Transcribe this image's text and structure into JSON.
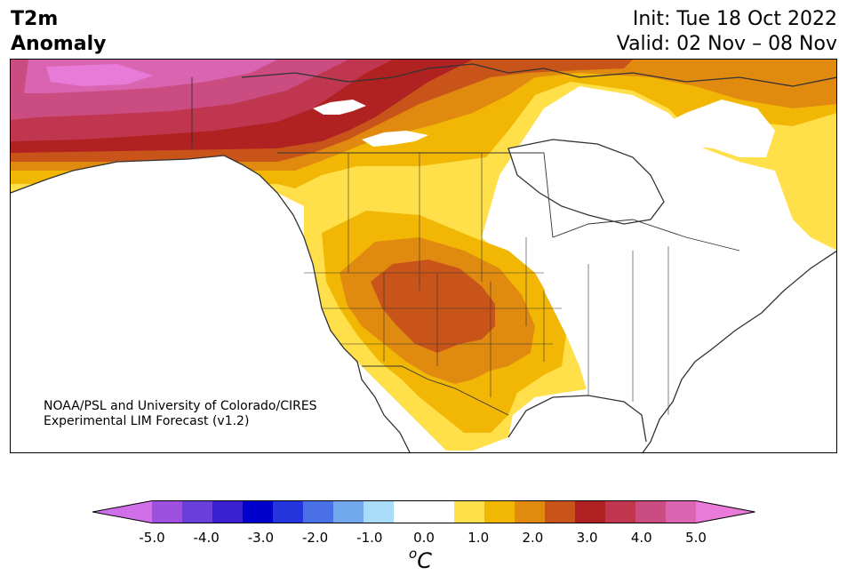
{
  "title": {
    "line1": "T2m",
    "line2": "Anomaly"
  },
  "info": {
    "init": "Init: Tue 18 Oct 2022",
    "valid": "Valid: 02 Nov – 08 Nov"
  },
  "credit": {
    "line1": "NOAA/PSL and University of Colorado/CIRES",
    "line2": "Experimental LIM Forecast (v1.2)"
  },
  "colorbar": {
    "colors": [
      "#d070e8",
      "#9d50e0",
      "#6a3ddd",
      "#3a20d0",
      "#0000cc",
      "#2435dd",
      "#4a70e6",
      "#72a8ee",
      "#a9dcf8",
      "#ffffff",
      "#ffffff",
      "#ffe04a",
      "#f2b705",
      "#e08a10",
      "#c9541a",
      "#b02222",
      "#c0364e",
      "#cb4c80",
      "#d965b0",
      "#e87ad8"
    ],
    "tick_labels": [
      "-5.0",
      "-4.0",
      "-3.0",
      "-2.0",
      "-1.0",
      "0.0",
      "1.0",
      "2.0",
      "3.0",
      "4.0",
      "5.0"
    ],
    "unit_base": "C",
    "unit_sup": "o"
  },
  "map_colors": {
    "c05": "#ffe04a",
    "c10": "#f2b705",
    "c15": "#e08a10",
    "c20": "#c9541a",
    "c25": "#b02222",
    "c30": "#c0364e",
    "c35": "#cb4c80",
    "c40": "#d965b0",
    "c45": "#e87ad8",
    "line": "#333333"
  }
}
